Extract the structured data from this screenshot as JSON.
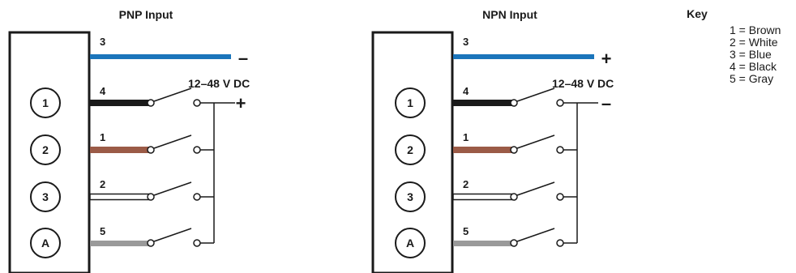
{
  "panels": [
    {
      "title": "PNP Input",
      "voltage": "12–48 V DC",
      "top_sign": "–",
      "rail_sign": "+",
      "rows": [
        {
          "pin": "1",
          "wire": "4",
          "color": "#1a1a1a",
          "style": "solid"
        },
        {
          "pin": "2",
          "wire": "1",
          "color": "#9b5b47",
          "style": "solid"
        },
        {
          "pin": "3",
          "wire": "2",
          "color": "#ffffff",
          "style": "outline"
        },
        {
          "pin": "A",
          "wire": "5",
          "color": "#9a9a9a",
          "style": "solid"
        }
      ],
      "top_wire": {
        "wire": "3",
        "color": "#1b75bb"
      }
    },
    {
      "title": "NPN Input",
      "voltage": "12–48 V DC",
      "top_sign": "+",
      "rail_sign": "–",
      "rows": [
        {
          "pin": "1",
          "wire": "4",
          "color": "#1a1a1a",
          "style": "solid"
        },
        {
          "pin": "2",
          "wire": "1",
          "color": "#9b5b47",
          "style": "solid"
        },
        {
          "pin": "3",
          "wire": "2",
          "color": "#ffffff",
          "style": "outline"
        },
        {
          "pin": "A",
          "wire": "5",
          "color": "#9a9a9a",
          "style": "solid"
        }
      ],
      "top_wire": {
        "wire": "3",
        "color": "#1b75bb"
      }
    }
  ],
  "key": {
    "title": "Key",
    "items": [
      "1 = Brown",
      "2 = White",
      "3 = Blue",
      "4 = Black",
      "5 = Gray"
    ]
  }
}
